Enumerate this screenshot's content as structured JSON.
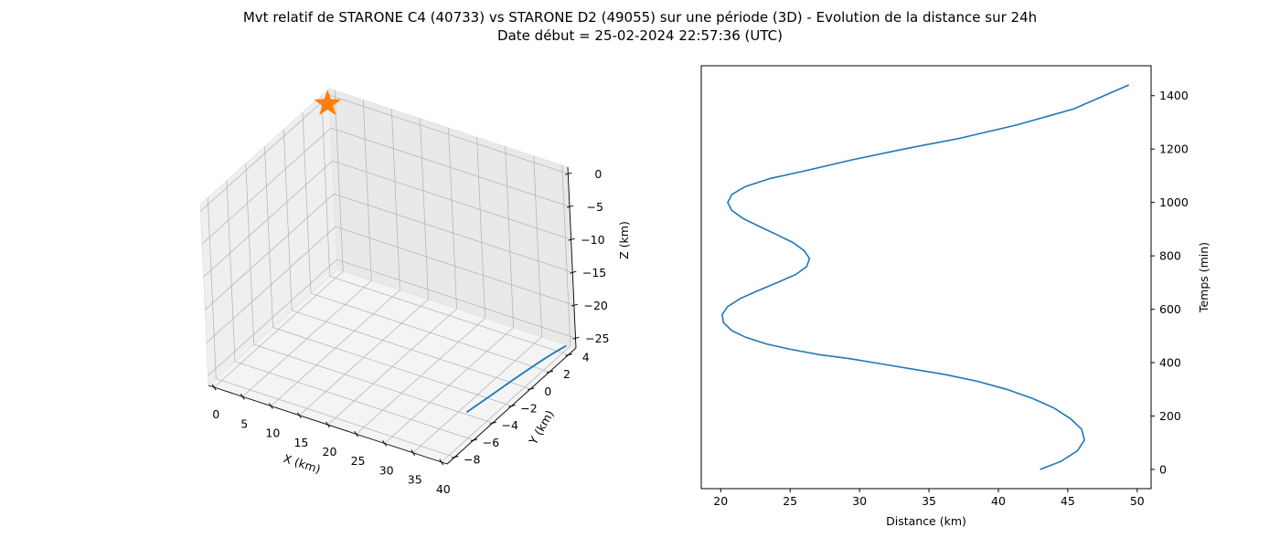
{
  "figure": {
    "title_line1": "Mvt relatif de STARONE C4 (40733) vs STARONE D2 (49055) sur une période (3D) - Evolution de la distance sur 24h",
    "title_line2": "Date début = 25-02-2024 22:57:36 (UTC)"
  },
  "colors": {
    "series": "#1f77b4",
    "marker": "#ff7f0e",
    "pane": "#f2f2f2",
    "grid": "#b0b0b0"
  },
  "chart_data": [
    {
      "type": "line",
      "projection": "3d",
      "xlabel": "X (km)",
      "ylabel": "Y (km)",
      "zlabel": "Z (km)",
      "xticks": [
        "0",
        "5",
        "10",
        "15",
        "20",
        "25",
        "30",
        "35",
        "40"
      ],
      "yticks": [
        "−8",
        "−6",
        "−4",
        "−2",
        "0",
        "2",
        "4"
      ],
      "zticks": [
        "0",
        "−5",
        "−10",
        "−15",
        "−20",
        "−25"
      ],
      "xlim": [
        -1,
        41
      ],
      "ylim": [
        -8.8,
        4.8
      ],
      "zlim": [
        -26.5,
        1
      ],
      "grid": true,
      "series": [
        {
          "x": [
            36.8,
            37.6,
            38.3,
            39.0,
            39.6,
            40.2,
            40.7
          ],
          "y": [
            -4.2,
            -2.2,
            -0.3,
            1.3,
            2.5,
            3.4,
            4.0
          ],
          "z": [
            -25.8,
            -25.7,
            -25.6,
            -25.5,
            -25.4,
            -25.3,
            -25.2
          ]
        }
      ],
      "marker": {
        "x": 0,
        "y": 4,
        "z": 0,
        "symbol": "star"
      }
    },
    {
      "type": "line",
      "xlabel": "Distance (km)",
      "ylabel": "Temps (min)",
      "xticks": [
        20,
        25,
        30,
        35,
        40,
        45,
        50
      ],
      "yticks": [
        0,
        200,
        400,
        600,
        800,
        1000,
        1200,
        1400
      ],
      "xlim": [
        18.6,
        51.0
      ],
      "ylim": [
        -72,
        1512
      ],
      "y_axis_side": "right",
      "grid": false,
      "series": [
        {
          "x": [
            43.0,
            44.5,
            45.7,
            46.2,
            46.0,
            45.2,
            44.0,
            42.5,
            40.6,
            38.5,
            36.2,
            33.9,
            31.6,
            29.3,
            27.1,
            25.0,
            23.3,
            21.8,
            20.8,
            20.2,
            20.1,
            20.5,
            21.4,
            22.7,
            24.1,
            25.4,
            26.2,
            26.4,
            26.0,
            25.2,
            24.0,
            22.8,
            21.6,
            20.8,
            20.5,
            20.8,
            21.8,
            23.6,
            26.2,
            29.5,
            33.2,
            37.2,
            41.3,
            45.4,
            49.4
          ],
          "y": [
            0,
            30,
            70,
            110,
            150,
            190,
            230,
            265,
            300,
            330,
            355,
            375,
            395,
            415,
            430,
            450,
            470,
            495,
            520,
            550,
            580,
            610,
            640,
            670,
            700,
            730,
            760,
            790,
            820,
            850,
            880,
            910,
            940,
            970,
            1000,
            1030,
            1060,
            1090,
            1120,
            1160,
            1200,
            1240,
            1290,
            1350,
            1440
          ]
        }
      ]
    }
  ]
}
